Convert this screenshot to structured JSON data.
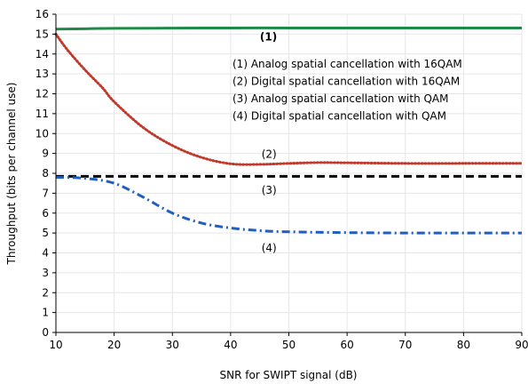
{
  "chart_data": {
    "type": "line",
    "title": "",
    "xlabel": "SNR for SWIPT signal (dB)",
    "ylabel": "Throughput (bits per channel use)",
    "xlim": [
      10,
      90
    ],
    "ylim": [
      0,
      16
    ],
    "xticks": [
      10,
      20,
      30,
      40,
      50,
      60,
      70,
      80,
      90
    ],
    "yticks": [
      0,
      1,
      2,
      3,
      4,
      5,
      6,
      7,
      8,
      9,
      10,
      11,
      12,
      13,
      14,
      15,
      16
    ],
    "grid": true,
    "legend_position": "upper-right, inside plot",
    "legend": [
      "(1) Analog spatial cancellation with 16QAM",
      "(2) Digital spatial cancellation with 16QAM",
      "(3) Analog spatial cancellation with QAM",
      "(4) Digital spatial cancellation with QAM"
    ],
    "series": [
      {
        "label": "(1)",
        "color": "#1e8a46",
        "style": "solid",
        "x": [
          10,
          15,
          20,
          30,
          40,
          50,
          60,
          70,
          80,
          90
        ],
        "y": [
          15.25,
          15.27,
          15.29,
          15.3,
          15.31,
          15.31,
          15.31,
          15.31,
          15.31,
          15.31
        ]
      },
      {
        "label": "(2)",
        "color": "#c0392b",
        "style": "dotted",
        "x": [
          10,
          12,
          15,
          18,
          20,
          25,
          30,
          35,
          40,
          45,
          50,
          55,
          60,
          70,
          80,
          90
        ],
        "y": [
          15.0,
          14.2,
          13.2,
          12.3,
          11.6,
          10.3,
          9.4,
          8.8,
          8.48,
          8.45,
          8.5,
          8.54,
          8.53,
          8.5,
          8.5,
          8.5
        ]
      },
      {
        "label": "(3)",
        "color": "#000000",
        "style": "dashed",
        "x": [
          10,
          90
        ],
        "y": [
          7.85,
          7.85
        ]
      },
      {
        "label": "(4)",
        "color": "#1f5fbf",
        "style": "dashdot",
        "x": [
          10,
          15,
          20,
          25,
          30,
          35,
          40,
          45,
          50,
          60,
          70,
          80,
          90
        ],
        "y": [
          7.8,
          7.75,
          7.5,
          6.8,
          6.0,
          5.5,
          5.25,
          5.12,
          5.06,
          5.02,
          5.0,
          5.0,
          5.0
        ]
      }
    ],
    "curve_labels": [
      {
        "text": "(1)",
        "x": 46.5,
        "y": 14.85,
        "bold": true
      },
      {
        "text": "(2)",
        "x": 46.6,
        "y": 8.95
      },
      {
        "text": "(3)",
        "x": 46.6,
        "y": 7.15
      },
      {
        "text": "(4)",
        "x": 46.6,
        "y": 4.25
      }
    ]
  }
}
